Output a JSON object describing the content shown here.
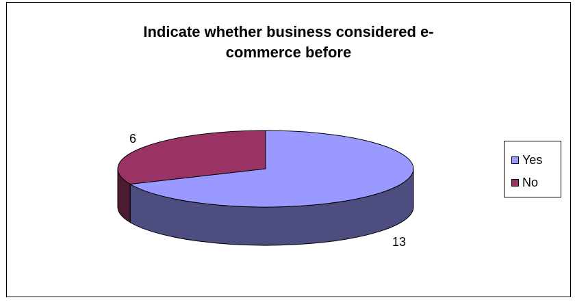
{
  "chart_data": {
    "type": "pie",
    "title": "Indicate whether business considered e-commerce before",
    "title_lines": [
      "Indicate whether business considered e-",
      "commerce before"
    ],
    "categories": [
      "Yes",
      "No"
    ],
    "values": [
      13,
      6
    ],
    "data_labels": [
      "13",
      "6"
    ],
    "legend_placement": "right",
    "colors": {
      "Yes": "#9999ff",
      "Yes_side": "#4d4d80",
      "No": "#993366",
      "No_side": "#4d1a33"
    },
    "style": "3d-pie"
  }
}
